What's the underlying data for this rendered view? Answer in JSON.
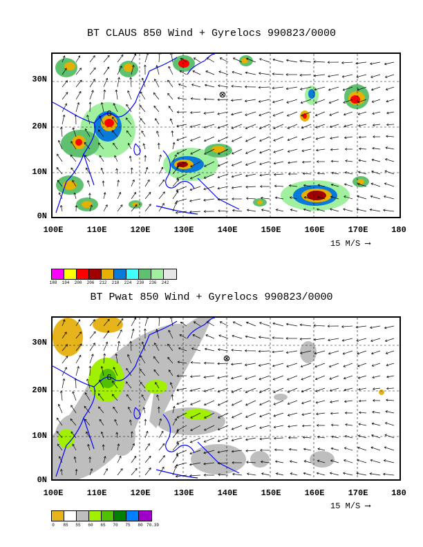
{
  "panels": [
    {
      "title": "BT CLAUS 850 Wind + Gyrelocs 990823/0000",
      "lat_labels": [
        "30N",
        "20N",
        "10N",
        "0N"
      ],
      "lon_labels": [
        "100E",
        "110E",
        "120E",
        "130E",
        "140E",
        "150E",
        "160E",
        "170E",
        "180"
      ],
      "scale_label": "15 M/S",
      "colorbar_labels": [
        "188",
        "194",
        "200",
        "206",
        "212",
        "218",
        "224",
        "230",
        "236",
        "242"
      ],
      "colorbar_colors": [
        "#ff00ff",
        "#ffff00",
        "#ff0000",
        "#a00000",
        "#e6b000",
        "#0a7ad8",
        "#40ffff",
        "#5fc070",
        "#a0f0a0",
        "#e6e6e6"
      ]
    },
    {
      "title": "BT Pwat 850 Wind + Gyrelocs 990823/0000",
      "lat_labels": [
        "30N",
        "20N",
        "10N",
        "0N"
      ],
      "lon_labels": [
        "100E",
        "110E",
        "120E",
        "130E",
        "140E",
        "150E",
        "160E",
        "170E",
        "180"
      ],
      "scale_label": "15 M/S",
      "colorbar_labels": [
        "0",
        "85",
        "55",
        "60",
        "65",
        "70",
        "75",
        "80",
        "70.39"
      ],
      "colorbar_colors": [
        "#e6b41a",
        "#ffffff",
        "#bebebe",
        "#a0f000",
        "#50c000",
        "#008000",
        "#0080ff",
        "#a000c8"
      ]
    }
  ],
  "markers": {
    "gyre_symbol": "⊗",
    "gyre_label": "G"
  },
  "map_meta": {
    "lon_range": [
      100,
      180
    ],
    "lat_range": [
      0,
      36
    ],
    "gridlines": "dashed every 10 degrees",
    "coastline_color": "#0000ff"
  }
}
